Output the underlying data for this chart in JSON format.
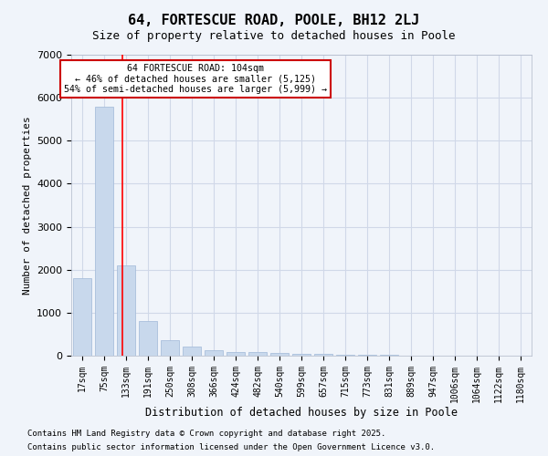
{
  "title1": "64, FORTESCUE ROAD, POOLE, BH12 2LJ",
  "title2": "Size of property relative to detached houses in Poole",
  "xlabel": "Distribution of detached houses by size in Poole",
  "ylabel": "Number of detached properties",
  "categories": [
    "17sqm",
    "75sqm",
    "133sqm",
    "191sqm",
    "250sqm",
    "308sqm",
    "366sqm",
    "424sqm",
    "482sqm",
    "540sqm",
    "599sqm",
    "657sqm",
    "715sqm",
    "773sqm",
    "831sqm",
    "889sqm",
    "947sqm",
    "1006sqm",
    "1064sqm",
    "1122sqm",
    "1180sqm"
  ],
  "values": [
    1800,
    5800,
    2100,
    810,
    370,
    220,
    130,
    95,
    80,
    65,
    45,
    35,
    25,
    18,
    13,
    10,
    7,
    6,
    5,
    5,
    5
  ],
  "bar_color": "#c8d8ec",
  "bar_edge_color": "#a0b8d8",
  "grid_color": "#d0d8e8",
  "background_color": "#f0f4fa",
  "red_line_x": 1.85,
  "annotation_text": "64 FORTESCUE ROAD: 104sqm\n← 46% of detached houses are smaller (5,125)\n54% of semi-detached houses are larger (5,999) →",
  "annotation_box_color": "#ffffff",
  "annotation_border_color": "#cc0000",
  "ylim": [
    0,
    7000
  ],
  "yticks": [
    0,
    1000,
    2000,
    3000,
    4000,
    5000,
    6000,
    7000
  ],
  "footer1": "Contains HM Land Registry data © Crown copyright and database right 2025.",
  "footer2": "Contains public sector information licensed under the Open Government Licence v3.0."
}
